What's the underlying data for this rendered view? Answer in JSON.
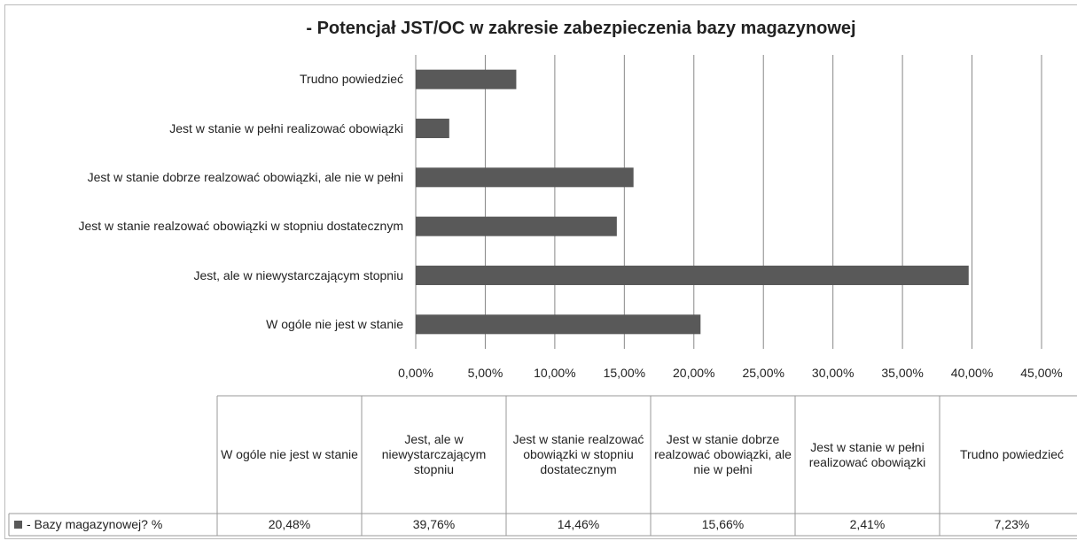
{
  "chart_data": {
    "type": "bar",
    "orientation": "horizontal",
    "title": "- Potencjał JST/OC  w zakresie zabezpieczenia bazy magazynowej",
    "categories": [
      "W ogóle nie jest w stanie",
      "Jest, ale w niewystarczającym stopniu",
      "Jest w stanie realzować obowiązki w stopniu dostatecznym",
      "Jest w stanie dobrze realzować  obowiązki, ale nie w pełni",
      "Jest w stanie w pełni realizować obowiązki",
      "Trudno powiedzieć"
    ],
    "series": [
      {
        "name": "- Bazy magazynowej? %",
        "color": "#595959",
        "values": [
          20.48,
          39.76,
          14.46,
          15.66,
          2.41,
          7.23
        ],
        "value_labels": [
          "20,48%",
          "39,76%",
          "14,46%",
          "15,66%",
          "2,41%",
          "7,23%"
        ]
      }
    ],
    "xlim": [
      0,
      45
    ],
    "xticks": [
      {
        "value": 0,
        "label": "0,00%"
      },
      {
        "value": 5,
        "label": "5,00%"
      },
      {
        "value": 10,
        "label": "10,00%"
      },
      {
        "value": 15,
        "label": "15,00%"
      },
      {
        "value": 20,
        "label": "20,00%"
      },
      {
        "value": 25,
        "label": "25,00%"
      },
      {
        "value": 30,
        "label": "30,00%"
      },
      {
        "value": 35,
        "label": "35,00%"
      },
      {
        "value": 40,
        "label": "40,00%"
      },
      {
        "value": 45,
        "label": "45,00%"
      }
    ],
    "grid": true,
    "data_table": true
  }
}
